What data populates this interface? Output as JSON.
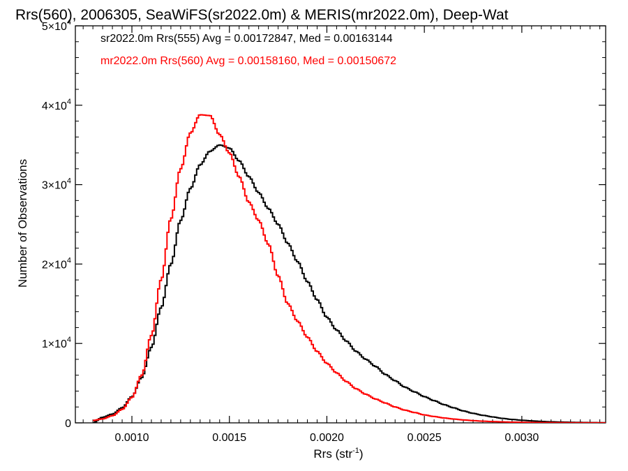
{
  "chart_data": {
    "type": "line",
    "title": "Rrs(560), 2006305, SeaWiFS(sr2022.0m) & MERIS(mr2022.0m), Deep-Wat",
    "xlabel": "Rrs (str",
    "xlabel_sup": "-1",
    "xlabel_end": ")",
    "ylabel": "Number of Observations",
    "xlim": [
      0.00071,
      0.00343
    ],
    "ylim": [
      0,
      50000
    ],
    "x_ticks": [
      {
        "value": 0.001,
        "label": "0.0010"
      },
      {
        "value": 0.0015,
        "label": "0.0015"
      },
      {
        "value": 0.002,
        "label": "0.0020"
      },
      {
        "value": 0.0025,
        "label": "0.0025"
      },
      {
        "value": 0.003,
        "label": "0.0030"
      }
    ],
    "y_ticks": [
      {
        "value": 0,
        "mant": "0",
        "exp": ""
      },
      {
        "value": 10000,
        "mant": "1×10",
        "exp": "4"
      },
      {
        "value": 20000,
        "mant": "2×10",
        "exp": "4"
      },
      {
        "value": 30000,
        "mant": "3×10",
        "exp": "4"
      },
      {
        "value": 40000,
        "mant": "4×10",
        "exp": "4"
      },
      {
        "value": 50000,
        "mant": "5×10",
        "exp": "4"
      }
    ],
    "grid": false,
    "step": true,
    "legend_position": "top-left",
    "series": [
      {
        "name": "sr2022.0m Rrs(555) Avg = 0.00172847, Med = 0.00163144",
        "color": "#000000",
        "points": [
          [
            0.0008,
            0
          ],
          [
            0.00085,
            700
          ],
          [
            0.0009,
            1100
          ],
          [
            0.00095,
            1900
          ],
          [
            0.001,
            3300
          ],
          [
            0.00105,
            5700
          ],
          [
            0.0011,
            9500
          ],
          [
            0.00115,
            14500
          ],
          [
            0.0012,
            20000
          ],
          [
            0.00125,
            25500
          ],
          [
            0.0013,
            29500
          ],
          [
            0.00135,
            32500
          ],
          [
            0.0014,
            34200
          ],
          [
            0.00145,
            35000
          ],
          [
            0.0015,
            34600
          ],
          [
            0.00155,
            33000
          ],
          [
            0.0016,
            31000
          ],
          [
            0.00165,
            29000
          ],
          [
            0.0017,
            27000
          ],
          [
            0.00175,
            25000
          ],
          [
            0.0018,
            22600
          ],
          [
            0.00185,
            20300
          ],
          [
            0.0019,
            17800
          ],
          [
            0.00195,
            15500
          ],
          [
            0.002,
            13300
          ],
          [
            0.00205,
            11700
          ],
          [
            0.0021,
            10300
          ],
          [
            0.00215,
            9000
          ],
          [
            0.0022,
            8000
          ],
          [
            0.00225,
            7100
          ],
          [
            0.0023,
            6100
          ],
          [
            0.00235,
            5300
          ],
          [
            0.0024,
            4500
          ],
          [
            0.00245,
            3900
          ],
          [
            0.0025,
            3300
          ],
          [
            0.00255,
            2800
          ],
          [
            0.0026,
            2300
          ],
          [
            0.00265,
            1900
          ],
          [
            0.0027,
            1500
          ],
          [
            0.00275,
            1200
          ],
          [
            0.0028,
            950
          ],
          [
            0.00285,
            750
          ],
          [
            0.0029,
            560
          ],
          [
            0.00295,
            430
          ],
          [
            0.003,
            330
          ],
          [
            0.00305,
            250
          ],
          [
            0.0031,
            180
          ],
          [
            0.00315,
            130
          ],
          [
            0.0032,
            100
          ],
          [
            0.00325,
            70
          ],
          [
            0.0033,
            50
          ],
          [
            0.00335,
            35
          ],
          [
            0.0034,
            25
          ],
          [
            0.00343,
            20
          ]
        ]
      },
      {
        "name": "mr2022.0m Rrs(560) Avg = 0.00158160, Med = 0.00150672",
        "color": "#ff0000",
        "points": [
          [
            0.0008,
            300
          ],
          [
            0.00085,
            500
          ],
          [
            0.0009,
            900
          ],
          [
            0.00095,
            1700
          ],
          [
            0.001,
            3200
          ],
          [
            0.00105,
            6000
          ],
          [
            0.0011,
            11000
          ],
          [
            0.00115,
            18000
          ],
          [
            0.0012,
            25700
          ],
          [
            0.00125,
            32000
          ],
          [
            0.0013,
            36500
          ],
          [
            0.00135,
            38800
          ],
          [
            0.0014,
            38700
          ],
          [
            0.00145,
            36300
          ],
          [
            0.0015,
            34000
          ],
          [
            0.00155,
            31000
          ],
          [
            0.0016,
            27800
          ],
          [
            0.00165,
            25500
          ],
          [
            0.0017,
            22500
          ],
          [
            0.00175,
            18500
          ],
          [
            0.0018,
            15000
          ],
          [
            0.00185,
            12800
          ],
          [
            0.0019,
            10800
          ],
          [
            0.00195,
            9000
          ],
          [
            0.002,
            7500
          ],
          [
            0.00205,
            6300
          ],
          [
            0.0021,
            5200
          ],
          [
            0.00215,
            4300
          ],
          [
            0.0022,
            3600
          ],
          [
            0.00225,
            3000
          ],
          [
            0.0023,
            2500
          ],
          [
            0.00235,
            2000
          ],
          [
            0.0024,
            1600
          ],
          [
            0.00245,
            1300
          ],
          [
            0.0025,
            1000
          ],
          [
            0.00255,
            800
          ],
          [
            0.0026,
            620
          ],
          [
            0.00265,
            480
          ],
          [
            0.0027,
            370
          ],
          [
            0.00275,
            280
          ],
          [
            0.0028,
            210
          ],
          [
            0.00285,
            160
          ],
          [
            0.0029,
            120
          ],
          [
            0.00295,
            90
          ],
          [
            0.003,
            70
          ],
          [
            0.00305,
            50
          ],
          [
            0.0031,
            38
          ],
          [
            0.00315,
            28
          ],
          [
            0.0032,
            20
          ],
          [
            0.00325,
            15
          ],
          [
            0.0033,
            10
          ],
          [
            0.00335,
            8
          ],
          [
            0.0034,
            6
          ],
          [
            0.00343,
            5
          ]
        ]
      }
    ]
  }
}
